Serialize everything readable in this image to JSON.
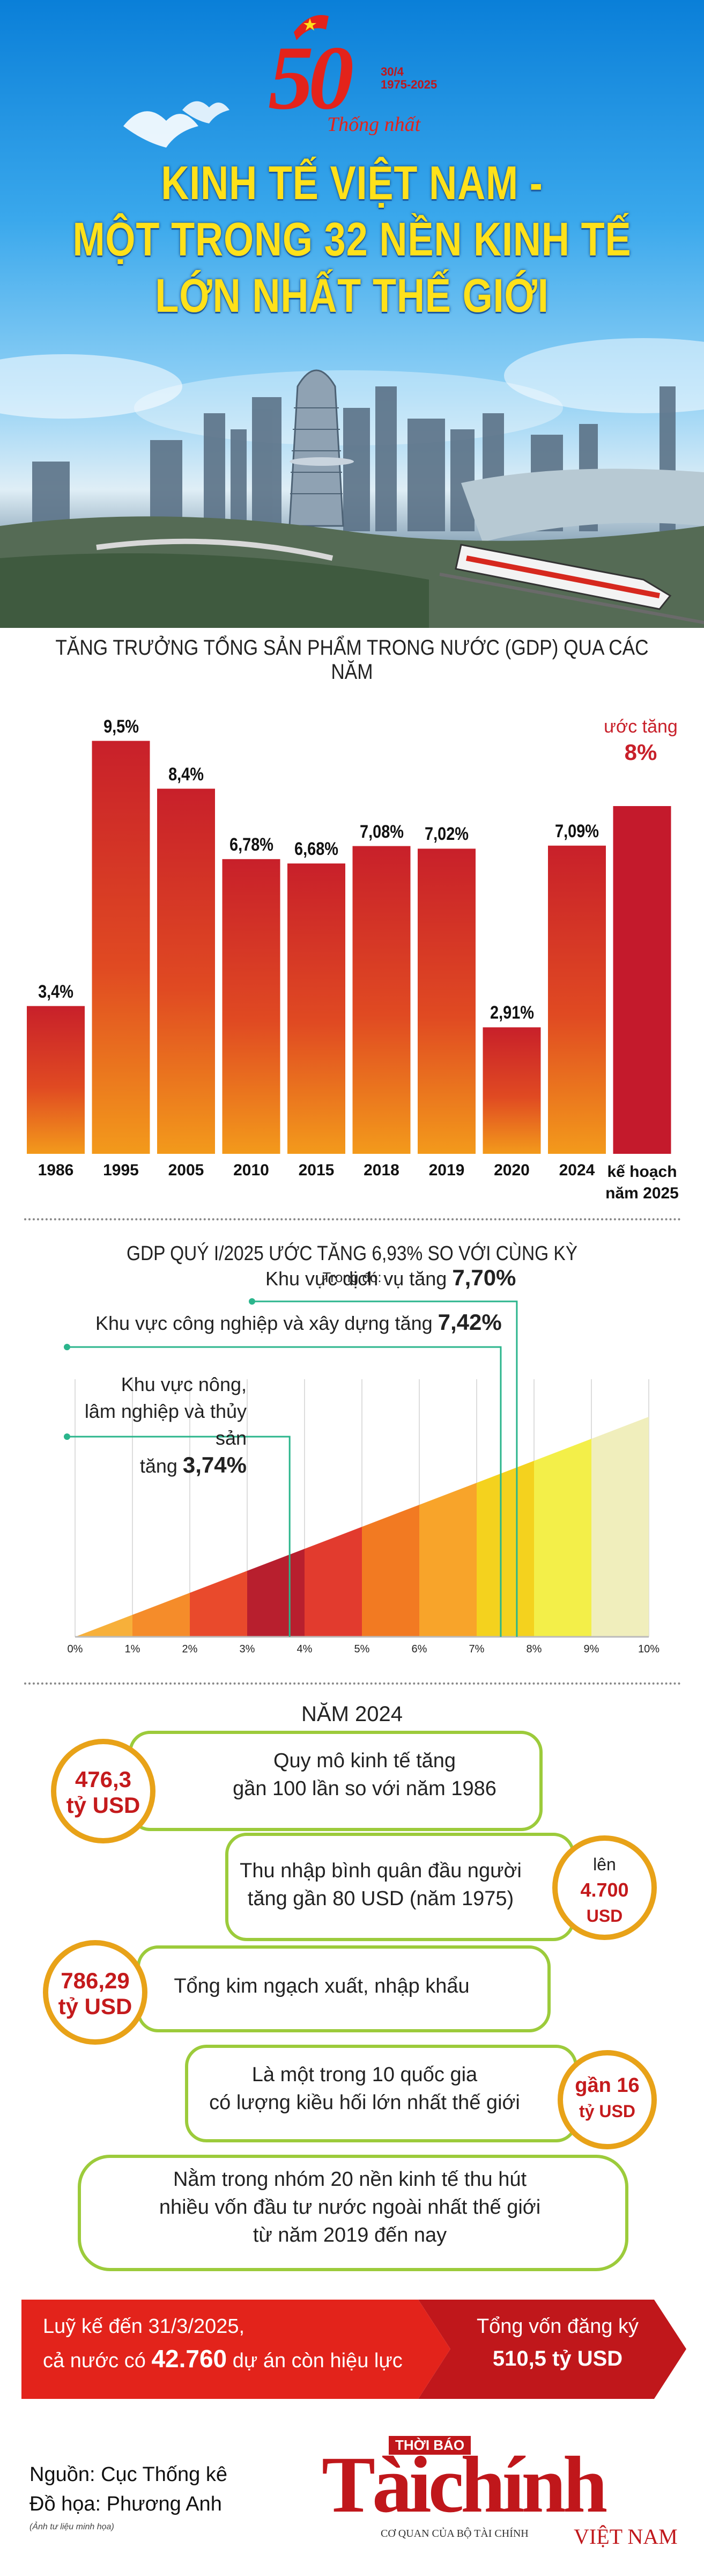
{
  "header": {
    "anniversary_number": "50",
    "anniversary_side": "30/4\n1975-2025",
    "anniversary_script": "Thống nhất",
    "title_lines": [
      "KINH TẾ VIỆT NAM -",
      "MỘT TRONG 32 NỀN KINH TẾ",
      "LỚN NHẤT THẾ GIỚI"
    ]
  },
  "gdp_section": {
    "title": "TĂNG TRƯỞNG TỔNG SẢN PHẨM TRONG NƯỚC (GDP) QUA CÁC NĂM",
    "target_note": "ước tăng",
    "target_value": "8%"
  },
  "quarter_section": {
    "title": "GDP QUÝ I/2025 ƯỚC TĂNG 6,93% SO VỚI CÙNG KỲ",
    "subtitle": "Trong đó:",
    "services_label": "Khu vực dịch vụ tăng",
    "services_value": "7,70%",
    "industry_label": "Khu vực công nghiệp và xây dựng tăng",
    "industry_value": "7,42%",
    "agri_line1": "Khu vực nông,",
    "agri_line2": "lâm nghiệp và thủy sản",
    "agri_line3": "tăng",
    "agri_value": "3,74%",
    "ticks": [
      "0%",
      "1%",
      "2%",
      "3%",
      "4%",
      "5%",
      "6%",
      "7%",
      "8%",
      "9%",
      "10%"
    ]
  },
  "year2024": {
    "title": "NĂM 2024",
    "item1_badge_value": "476,3",
    "item1_badge_unit": "tỷ USD",
    "item1_text_line1": "Quy mô kinh tế tăng",
    "item1_text_line2": "gần 100 lần so với năm 1986",
    "item2_text_line1": "Thu nhập bình quân đầu người",
    "item2_text_line2": "tăng gần 80 USD (năm 1975)",
    "item2_badge_line1": "lên",
    "item2_badge_value": "4.700",
    "item2_badge_unit": "USD",
    "item3_badge_value": "786,29",
    "item3_badge_unit": "tỷ USD",
    "item3_text": "Tổng kim ngạch xuất, nhập khẩu",
    "item4_text_line1": "Là một trong 10 quốc gia",
    "item4_text_line2": "có lượng kiều hối lớn nhất thế giới",
    "item4_badge_line1": "gần 16",
    "item4_badge_unit": "tỷ USD",
    "item5_text_line1": "Nằm trong nhóm 20 nền kinh tế thu hút",
    "item5_text_line2": "nhiều vốn đầu tư nước ngoài nhất thế giới",
    "item5_text_line3": "từ năm 2019 đến nay",
    "fdi_left_line1": "Luỹ kế đến 31/3/2025,",
    "fdi_left_line2a": "cả nước có",
    "fdi_left_value": "42.760",
    "fdi_left_line2b": "dự án còn hiệu lực",
    "fdi_right_line1": "Tổng vốn đăng ký",
    "fdi_right_value": "510,5 tỷ USD"
  },
  "footer": {
    "source": "Nguồn: Cục Thống kê",
    "graphics": "Đồ họa: Phương Anh",
    "image_note": "(Ảnh tư liệu minh họa)",
    "brand_top": "THỜI BÁO",
    "brand_main": "Tàichính",
    "brand_country": "VIỆT NAM",
    "brand_sub": "CƠ QUAN CỦA BỘ TÀI CHÍNH"
  },
  "colors": {
    "bar_red": "#c8202a",
    "bar_orange": "#f07a1a",
    "title_yellow": "#ffe11a",
    "accent_red": "#e3231b",
    "green_border": "#9ccb3b",
    "badge_orange": "#e8a218"
  },
  "chart_data": [
    {
      "type": "bar",
      "title": "TĂNG TRƯỞNG TỔNG SẢN PHẨM TRONG NƯỚC (GDP) QUA CÁC NĂM",
      "categories": [
        "1986",
        "1995",
        "2005",
        "2010",
        "2015",
        "2018",
        "2019",
        "2020",
        "2024",
        "kế hoạch năm 2025"
      ],
      "values": [
        3.4,
        9.5,
        8.4,
        6.78,
        6.68,
        7.08,
        7.02,
        2.91,
        7.09,
        8
      ],
      "value_labels": [
        "3,4%",
        "9,5%",
        "8,4%",
        "6,78%",
        "6,68%",
        "7,08%",
        "7,02%",
        "2,91%",
        "7,09%",
        "8%"
      ],
      "ylim": [
        0,
        10
      ],
      "grid": false
    },
    {
      "type": "area",
      "title": "GDP QUÝ I/2025 ƯỚC TĂNG 6,93% SO VỚI CÙNG KỲ",
      "x": [
        0,
        10
      ],
      "y": [
        0,
        10
      ],
      "xlim": [
        0,
        10
      ],
      "annotations": [
        {
          "label": "Khu vực dịch vụ tăng",
          "x": 7.7
        },
        {
          "label": "Khu vực công nghiệp và xây dựng tăng",
          "x": 7.42
        },
        {
          "label": "Khu vực nông, lâm nghiệp và thủy sản tăng",
          "x": 3.74
        }
      ]
    }
  ]
}
